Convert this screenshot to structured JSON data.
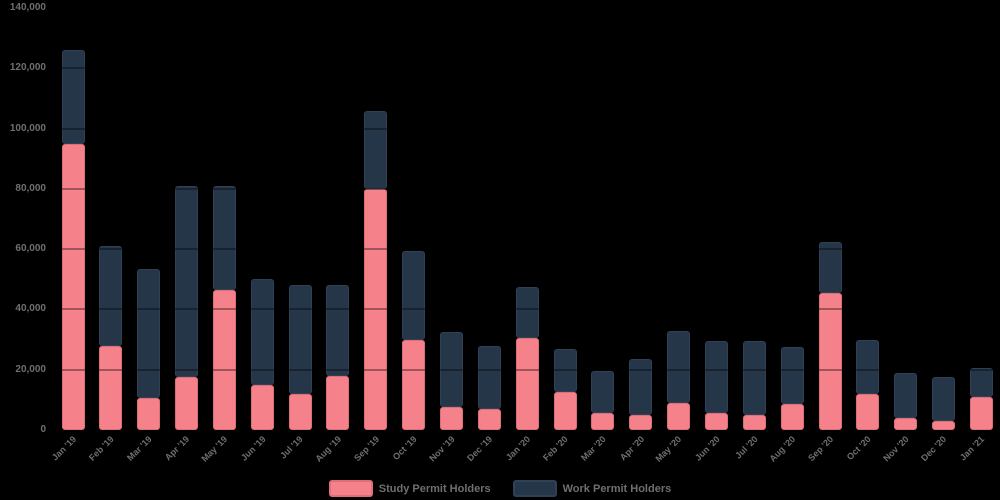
{
  "colors": {
    "background": "#000000",
    "study_fill": "#F5828A",
    "study_border": "#DE6E77",
    "work_fill": "#253649",
    "work_border": "#2E4156",
    "label_text": "#6F6F6F",
    "gridline": "rgba(0,0,0,0.35)"
  },
  "legend": [
    {
      "label": "Study Permit Holders",
      "color": "#F5828A"
    },
    {
      "label": "Work Permit Holders",
      "color": "#253649"
    }
  ],
  "chart_data": {
    "type": "bar",
    "stacked": true,
    "title": "",
    "xlabel": "",
    "ylabel": "",
    "ylim": [
      0,
      140000
    ],
    "ytick_step": 20000,
    "yticks": [
      "140,000",
      "120,000",
      "100,000",
      "80,000",
      "60,000",
      "40,000",
      "20,000",
      "0"
    ],
    "grid": true,
    "legend_position": "bottom",
    "categories": [
      "Jan '19",
      "Feb '19",
      "Mar '19",
      "Apr '19",
      "May '19",
      "Jun '19",
      "Jul '19",
      "Aug '19",
      "Sep '19",
      "Oct '19",
      "Nov '19",
      "Dec '19",
      "Jan '20",
      "Feb '20",
      "Mar '20",
      "Apr '20",
      "May '20",
      "Jun '20",
      "Jul '20",
      "Aug '20",
      "Sep '20",
      "Oct '20",
      "Nov '20",
      "Dec '20",
      "Jan '21"
    ],
    "series": [
      {
        "name": "Study Permit Holders",
        "color": "#F5828A",
        "values": [
          95000,
          28000,
          10500,
          17500,
          46500,
          15000,
          12000,
          18000,
          80000,
          30000,
          7500,
          7000,
          30500,
          12500,
          5500,
          5000,
          9000,
          5500,
          5000,
          8500,
          45500,
          12000,
          4000,
          3000,
          11000
        ]
      },
      {
        "name": "Work Permit Holders",
        "color": "#253649",
        "values": [
          31000,
          33000,
          43000,
          63500,
          34500,
          35000,
          36000,
          30000,
          26000,
          29500,
          25000,
          21000,
          17000,
          14500,
          14000,
          18500,
          24000,
          24000,
          24500,
          19000,
          17000,
          18000,
          15000,
          14500,
          9500
        ]
      }
    ]
  }
}
